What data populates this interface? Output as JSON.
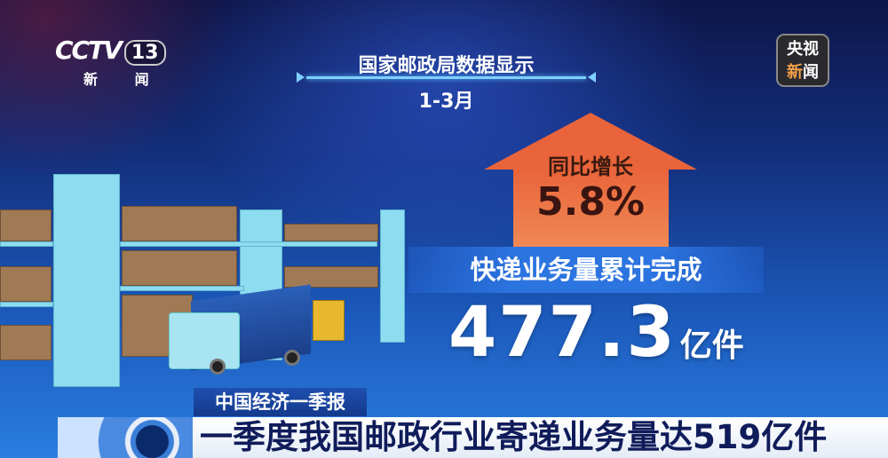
{
  "channel_logo": {
    "brand": "CCTV",
    "channel_number": "13",
    "channel_name": "新 闻"
  },
  "corner_logo": {
    "line1": "央视",
    "line2_a": "新",
    "line2_b": "闻",
    "accent_color": "#f3a04a"
  },
  "infographic": {
    "source": "国家邮政局数据显示",
    "period": "1-3月",
    "growth_label": "同比增长",
    "growth_value": "5.8%",
    "metric_label": "快递业务量累计完成",
    "metric_value": "477.3",
    "metric_unit": "亿件",
    "arrow_color": "#e9643a"
  },
  "lower_third": {
    "category": "中国经济一季报",
    "headline": "一季度我国邮政行业寄递业务量达519亿件"
  }
}
